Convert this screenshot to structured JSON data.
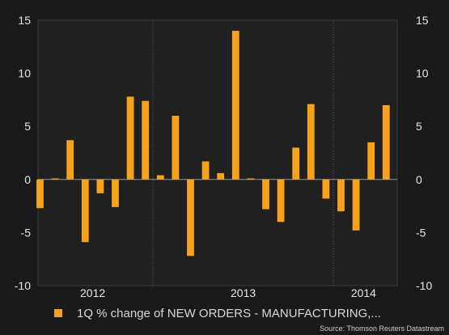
{
  "chart_data": {
    "type": "bar",
    "series": [
      {
        "name": "1Q % change of NEW ORDERS - MANUFACTURING,...",
        "color": "#f7a21b",
        "values": [
          -2.7,
          0.1,
          3.7,
          -5.9,
          -1.3,
          -2.6,
          7.8,
          7.4,
          0.4,
          6.0,
          -7.2,
          1.7,
          0.6,
          14.0,
          0.1,
          -2.8,
          -4.0,
          3.0,
          7.1,
          -1.8,
          -3.0,
          -4.8,
          3.5,
          7.0
        ]
      }
    ],
    "x_tick_labels": [
      "2012",
      "2013",
      "2014"
    ],
    "ylim": [
      -10,
      15
    ],
    "y_ticks": [
      "15",
      "10",
      "5",
      "0",
      "-5",
      "-10"
    ],
    "y_axis_sides": "left and right",
    "vertical_separators": "between years"
  },
  "legend": {
    "label": "1Q % change of NEW ORDERS - MANUFACTURING,...",
    "color": "#f7a21b"
  },
  "source": "Source: Thomson Reuters Datastream"
}
